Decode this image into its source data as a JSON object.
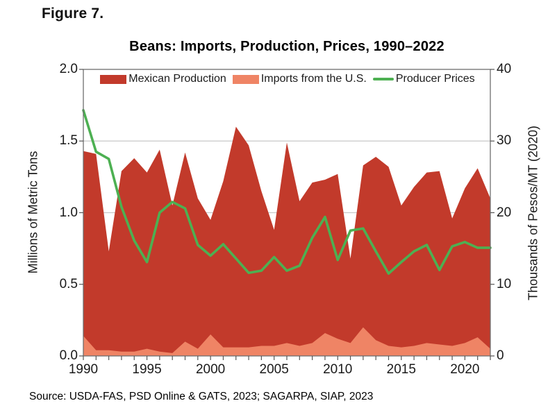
{
  "figure_label": "Figure 7.",
  "title": "Beans: Imports, Production, Prices, 1990–2022",
  "source": "Source: USDA-FAS, PSD Online & GATS, 2023; SAGARPA, SIAP, 2023",
  "left_axis": {
    "title": "Millions of Metric Tons",
    "tick_labels": [
      "0.0",
      "0.5",
      "1.0",
      "1.5",
      "2.0"
    ],
    "tick_values": [
      0,
      0.5,
      1.0,
      1.5,
      2.0
    ],
    "min": 0,
    "max": 2
  },
  "right_axis": {
    "title": "Thousands of Pesos/MT (2020)",
    "tick_labels": [
      "0",
      "10",
      "20",
      "30",
      "40"
    ],
    "tick_values": [
      0,
      10,
      20,
      30,
      40
    ],
    "min": 0,
    "max": 40
  },
  "x_axis": {
    "tick_labels": [
      "1990",
      "1995",
      "2000",
      "2005",
      "2010",
      "2015",
      "2020"
    ],
    "tick_values": [
      1990,
      1995,
      2000,
      2005,
      2010,
      2015,
      2020
    ],
    "minor_tick_step": 1,
    "min": 1990,
    "max": 2022
  },
  "legend": {
    "items": [
      {
        "label": "Mexican Production",
        "color": "#C23A2B",
        "marker": "box"
      },
      {
        "label": "Imports from the U.S.",
        "color": "#EF8465",
        "marker": "box"
      },
      {
        "label": "Producer Prices",
        "color": "#4DB052",
        "marker": "line"
      }
    ]
  },
  "colors": {
    "production_area": "#C23A2B",
    "imports_area": "#EF8465",
    "prices_line": "#4DB052",
    "gridline": "#c9c9c9",
    "plot_border": "#6e6e6e",
    "tick": "#555555"
  },
  "chart_data": {
    "type": "area",
    "title": "Beans: Imports, Production, Prices, 1990–2022",
    "x": [
      1990,
      1991,
      1992,
      1993,
      1994,
      1995,
      1996,
      1997,
      1998,
      1999,
      2000,
      2001,
      2002,
      2003,
      2004,
      2005,
      2006,
      2007,
      2008,
      2009,
      2010,
      2011,
      2012,
      2013,
      2014,
      2015,
      2016,
      2017,
      2018,
      2019,
      2020,
      2021,
      2022
    ],
    "ylim_left": [
      0,
      2.0
    ],
    "ylim_right": [
      0,
      40
    ],
    "grid": "horizontal",
    "legend_position": "top-inside",
    "series": [
      {
        "name": "Mexican Production",
        "type": "area",
        "axis": "left",
        "units": "million MT",
        "color": "#C23A2B",
        "values": [
          1.43,
          1.41,
          0.73,
          1.29,
          1.38,
          1.28,
          1.44,
          1.05,
          1.42,
          1.1,
          0.95,
          1.22,
          1.6,
          1.47,
          1.15,
          0.88,
          1.49,
          1.08,
          1.21,
          1.23,
          1.27,
          0.68,
          1.33,
          1.39,
          1.32,
          1.05,
          1.18,
          1.28,
          1.29,
          0.96,
          1.17,
          1.31,
          1.1
        ]
      },
      {
        "name": "Imports from the U.S.",
        "type": "area",
        "axis": "left",
        "units": "million MT",
        "color": "#EF8465",
        "values": [
          0.14,
          0.04,
          0.04,
          0.03,
          0.03,
          0.05,
          0.03,
          0.02,
          0.1,
          0.05,
          0.15,
          0.06,
          0.06,
          0.06,
          0.07,
          0.07,
          0.09,
          0.07,
          0.09,
          0.16,
          0.12,
          0.09,
          0.2,
          0.11,
          0.07,
          0.06,
          0.07,
          0.09,
          0.08,
          0.07,
          0.09,
          0.13,
          0.05
        ]
      },
      {
        "name": "Producer Prices",
        "type": "line",
        "axis": "right",
        "units": "thousand pesos/MT (2020)",
        "color": "#4DB052",
        "values": [
          34.3,
          28.5,
          27.5,
          20.8,
          16.1,
          13.1,
          20.0,
          21.5,
          20.6,
          15.5,
          14.0,
          15.6,
          13.6,
          11.6,
          11.9,
          13.8,
          11.9,
          12.6,
          16.5,
          19.4,
          13.4,
          17.5,
          17.8,
          14.6,
          11.5,
          13.1,
          14.6,
          15.5,
          12.0,
          15.3,
          15.9,
          15.1,
          15.1
        ]
      }
    ]
  }
}
